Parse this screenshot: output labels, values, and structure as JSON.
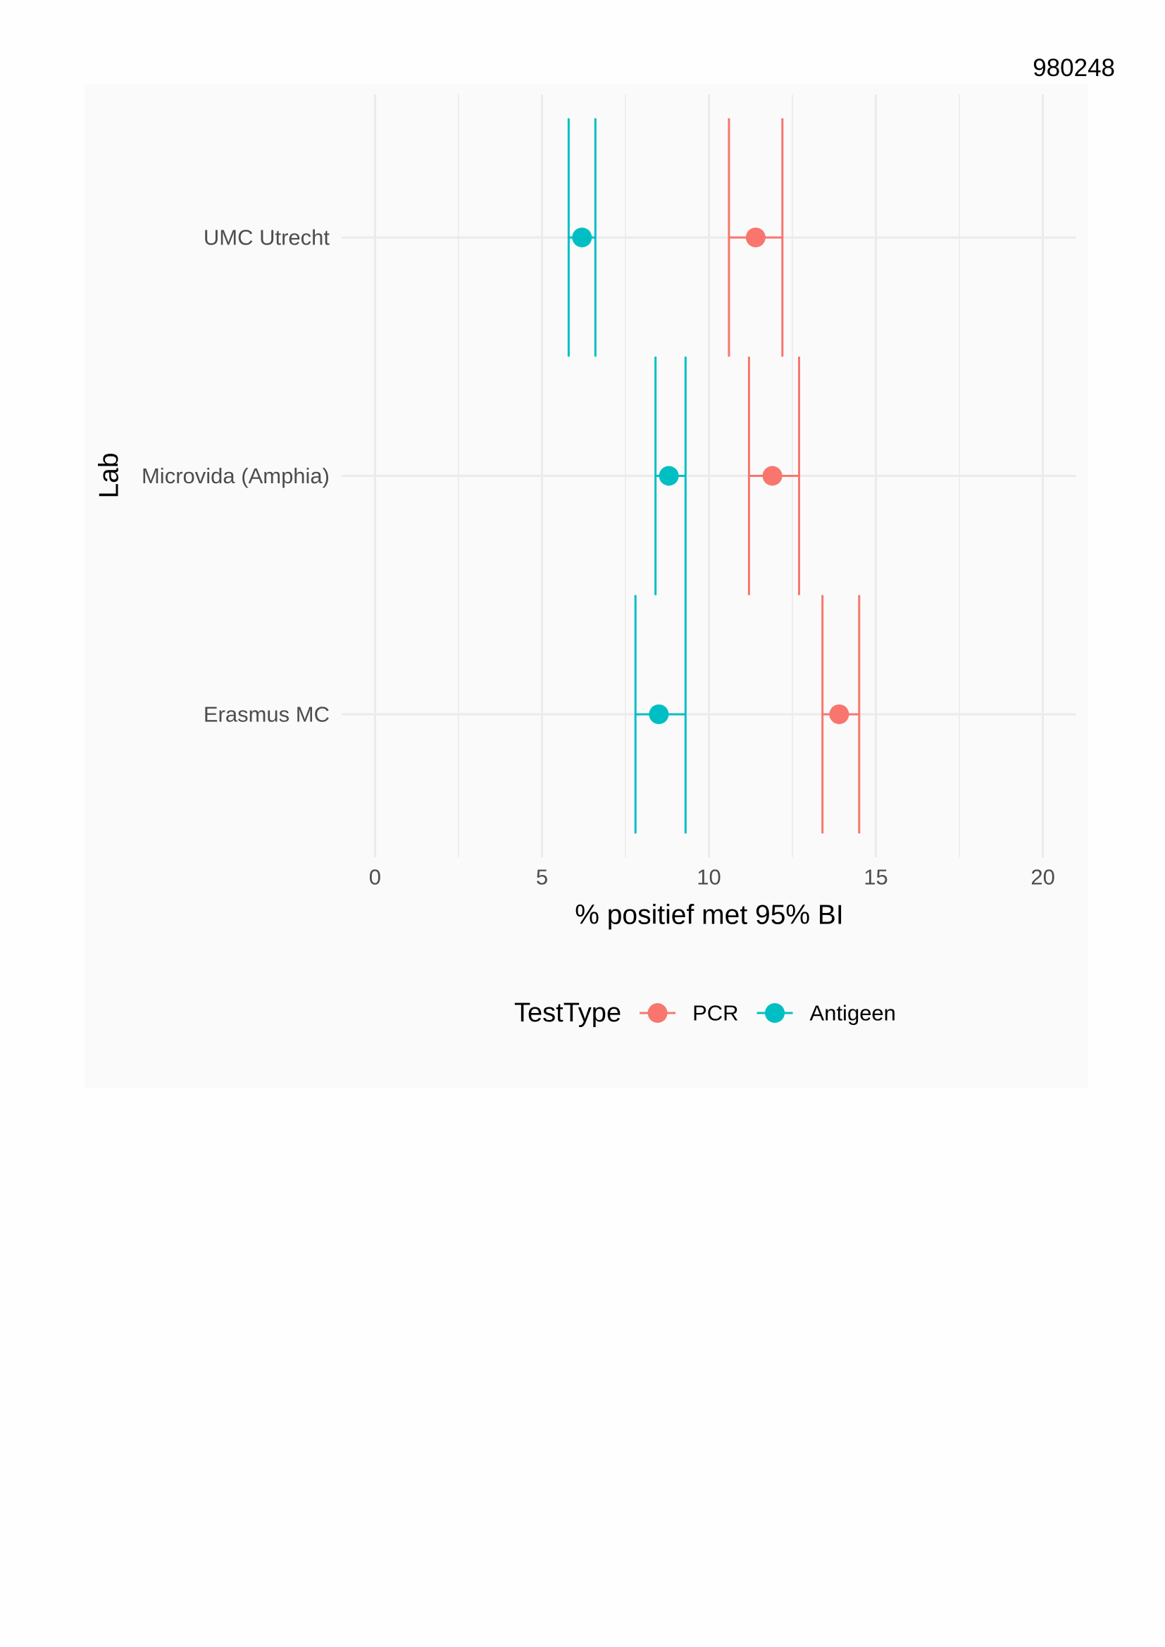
{
  "page": {
    "document_number": "980248"
  },
  "colors": {
    "page_background": "#fefefe",
    "chart_background": "#fafafa",
    "grid": "#ebebeb",
    "tick_label": "#4d4d4d",
    "text": "#000000"
  },
  "chart_data": {
    "type": "scatter",
    "error_bars": true,
    "categories": [
      "UMC Utrecht",
      "Microvida (Amphia)",
      "Erasmus MC"
    ],
    "series": [
      {
        "name": "PCR",
        "color": "#F8766D",
        "values": [
          11.4,
          11.9,
          13.9
        ],
        "ci_lower": [
          10.6,
          11.2,
          13.4
        ],
        "ci_upper": [
          12.2,
          12.7,
          14.5
        ]
      },
      {
        "name": "Antigeen",
        "color": "#00BFC4",
        "values": [
          6.2,
          8.8,
          8.5
        ],
        "ci_lower": [
          5.8,
          8.4,
          7.8
        ],
        "ci_upper": [
          6.6,
          9.3,
          9.3
        ]
      }
    ],
    "xlabel": "% positief met 95% BI",
    "ylabel": "Lab",
    "xlim": [
      0,
      20
    ],
    "xticks": [
      0,
      5,
      10,
      15,
      20
    ],
    "grid": true,
    "legend": {
      "title": "TestType",
      "position": "bottom"
    }
  }
}
